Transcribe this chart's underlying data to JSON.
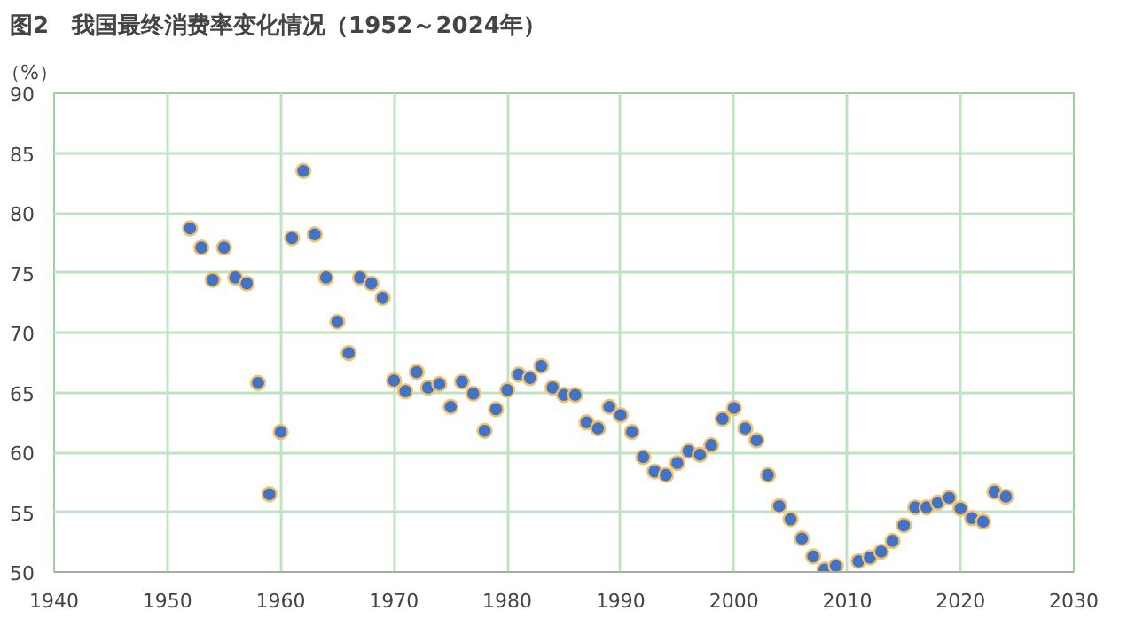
{
  "chart_data": {
    "type": "scatter",
    "title": "图2　我国最终消费率变化情况（1952～2024年）",
    "ylabel": "（%）",
    "x": [
      1952,
      1953,
      1954,
      1955,
      1956,
      1957,
      1958,
      1959,
      1960,
      1961,
      1962,
      1963,
      1964,
      1965,
      1966,
      1967,
      1968,
      1969,
      1970,
      1971,
      1972,
      1973,
      1974,
      1975,
      1976,
      1977,
      1978,
      1979,
      1980,
      1981,
      1982,
      1983,
      1984,
      1985,
      1986,
      1987,
      1988,
      1989,
      1990,
      1991,
      1992,
      1993,
      1994,
      1995,
      1996,
      1997,
      1998,
      1999,
      2000,
      2001,
      2002,
      2003,
      2004,
      2005,
      2006,
      2007,
      2008,
      2009,
      2010,
      2011,
      2012,
      2013,
      2014,
      2015,
      2016,
      2017,
      2018,
      2019,
      2020,
      2021,
      2022,
      2023,
      2024
    ],
    "series": [
      {
        "color": "#4472c4",
        "values": [
          78.7,
          77.1,
          74.4,
          77.1,
          74.6,
          74.1,
          65.8,
          56.5,
          61.7,
          77.9,
          83.5,
          78.2,
          74.6,
          70.9,
          68.3,
          74.6,
          74.1,
          72.9,
          66.0,
          65.1,
          66.7,
          65.4,
          65.7,
          63.8,
          65.9,
          64.9,
          61.8,
          63.6,
          65.2,
          66.5,
          66.2,
          67.2,
          65.4,
          64.8,
          64.8,
          62.5,
          62.0,
          63.8,
          63.1,
          61.7,
          59.6,
          58.4,
          58.1,
          59.1,
          60.1,
          59.8,
          60.6,
          62.8,
          63.7,
          62.0,
          61.0,
          58.1,
          55.5,
          54.4,
          52.8,
          51.3,
          50.2,
          50.5,
          null,
          50.9,
          51.2,
          51.7,
          52.6,
          53.9,
          55.4,
          55.4,
          55.8,
          56.2,
          55.3,
          54.5,
          54.2,
          56.7,
          56.3
        ]
      }
    ],
    "xlim": [
      1940,
      2030
    ],
    "xticks": [
      1940,
      1950,
      1960,
      1970,
      1980,
      1990,
      2000,
      2010,
      2020,
      2030
    ],
    "ylim": [
      50,
      90
    ],
    "yticks": [
      50,
      55,
      60,
      65,
      70,
      75,
      80,
      85,
      90
    ],
    "grid": true,
    "marker": "circle"
  }
}
